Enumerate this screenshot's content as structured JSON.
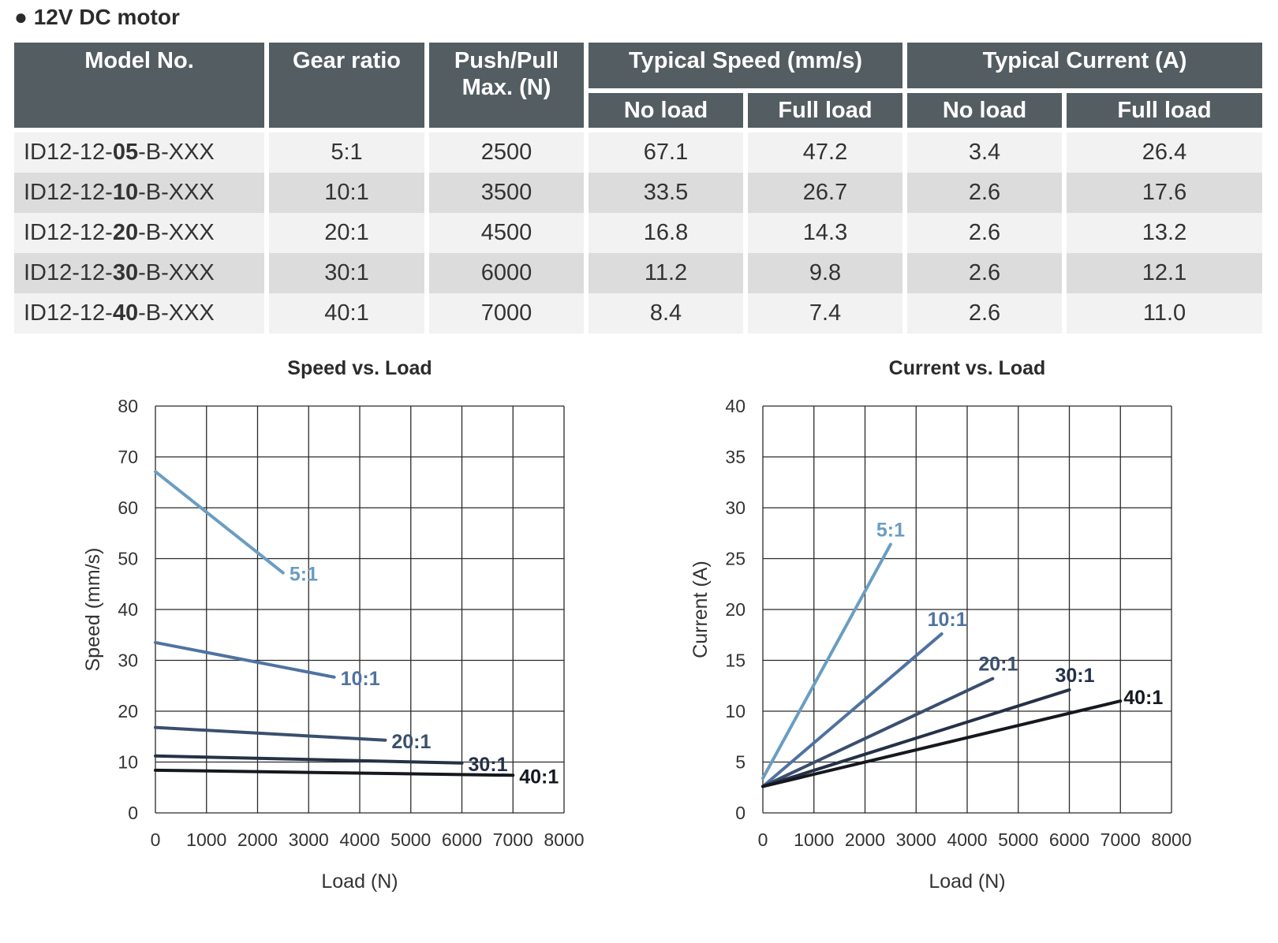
{
  "heading": "● 12V DC motor",
  "table": {
    "headers": {
      "model": "Model No.",
      "gear": "Gear ratio",
      "push": "Push/Pull Max. (N)",
      "speed_group": "Typical Speed (mm/s)",
      "current_group": "Typical Current (A)",
      "no_load": "No load",
      "full_load": "Full load"
    },
    "rows": [
      {
        "model_prefix": "ID12-12-",
        "model_code": "05",
        "model_suffix": "-B-XXX",
        "gear": "5:1",
        "push": "2500",
        "speed_no": "67.1",
        "speed_full": "47.2",
        "cur_no": "3.4",
        "cur_full": "26.4"
      },
      {
        "model_prefix": "ID12-12-",
        "model_code": "10",
        "model_suffix": "-B-XXX",
        "gear": "10:1",
        "push": "3500",
        "speed_no": "33.5",
        "speed_full": "26.7",
        "cur_no": "2.6",
        "cur_full": "17.6"
      },
      {
        "model_prefix": "ID12-12-",
        "model_code": "20",
        "model_suffix": "-B-XXX",
        "gear": "20:1",
        "push": "4500",
        "speed_no": "16.8",
        "speed_full": "14.3",
        "cur_no": "2.6",
        "cur_full": "13.2"
      },
      {
        "model_prefix": "ID12-12-",
        "model_code": "30",
        "model_suffix": "-B-XXX",
        "gear": "30:1",
        "push": "6000",
        "speed_no": "11.2",
        "speed_full": "9.8",
        "cur_no": "2.6",
        "cur_full": "12.1"
      },
      {
        "model_prefix": "ID12-12-",
        "model_code": "40",
        "model_suffix": "-B-XXX",
        "gear": "40:1",
        "push": "7000",
        "speed_no": "8.4",
        "speed_full": "7.4",
        "cur_no": "2.6",
        "cur_full": "11.0"
      }
    ]
  },
  "chart_data": [
    {
      "type": "line",
      "title": "Speed vs. Load",
      "xlabel": "Load (N)",
      "ylabel": "Speed (mm/s)",
      "xlim": [
        0,
        8000
      ],
      "ylim": [
        0,
        80
      ],
      "xticks": [
        "0",
        "1000",
        "2000",
        "3000",
        "4000",
        "5000",
        "6000",
        "7000",
        "8000"
      ],
      "yticks": [
        "0",
        "10",
        "20",
        "30",
        "40",
        "50",
        "60",
        "70",
        "80"
      ],
      "grid": true,
      "series": [
        {
          "name": "5:1",
          "color": "#6a9dc3",
          "x": [
            0,
            2500
          ],
          "y": [
            67.1,
            47.2
          ]
        },
        {
          "name": "10:1",
          "color": "#4f73a0",
          "x": [
            0,
            3500
          ],
          "y": [
            33.5,
            26.7
          ]
        },
        {
          "name": "20:1",
          "color": "#3a4f6e",
          "x": [
            0,
            4500
          ],
          "y": [
            16.8,
            14.3
          ]
        },
        {
          "name": "30:1",
          "color": "#243147",
          "x": [
            0,
            6000
          ],
          "y": [
            11.2,
            9.8
          ]
        },
        {
          "name": "40:1",
          "color": "#15181e",
          "x": [
            0,
            7000
          ],
          "y": [
            8.4,
            7.4
          ]
        }
      ]
    },
    {
      "type": "line",
      "title": "Current  vs. Load",
      "xlabel": "Load (N)",
      "ylabel": "Current (A)",
      "xlim": [
        0,
        8000
      ],
      "ylim": [
        0,
        40
      ],
      "xticks": [
        "0",
        "1000",
        "2000",
        "3000",
        "4000",
        "5000",
        "6000",
        "7000",
        "8000"
      ],
      "yticks": [
        "0",
        "5",
        "10",
        "15",
        "20",
        "25",
        "30",
        "35",
        "40"
      ],
      "grid": true,
      "series": [
        {
          "name": "5:1",
          "color": "#6a9dc3",
          "x": [
            0,
            2500
          ],
          "y": [
            3.4,
            26.4
          ]
        },
        {
          "name": "10:1",
          "color": "#4f73a0",
          "x": [
            0,
            3500
          ],
          "y": [
            2.6,
            17.6
          ]
        },
        {
          "name": "20:1",
          "color": "#3a4f6e",
          "x": [
            0,
            4500
          ],
          "y": [
            2.6,
            13.2
          ]
        },
        {
          "name": "30:1",
          "color": "#243147",
          "x": [
            0,
            6000
          ],
          "y": [
            2.6,
            12.1
          ]
        },
        {
          "name": "40:1",
          "color": "#15181e",
          "x": [
            0,
            7000
          ],
          "y": [
            2.6,
            11.0
          ]
        }
      ]
    }
  ]
}
